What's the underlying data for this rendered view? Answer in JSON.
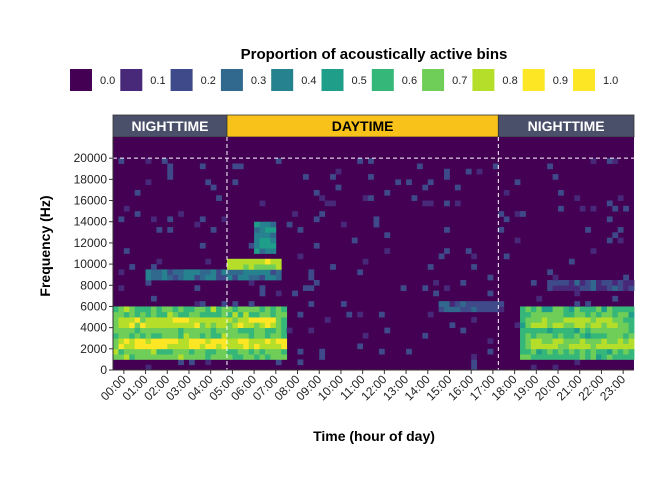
{
  "chart_data": {
    "type": "heatmap",
    "legend": {
      "title": "Proportion of acoustically active bins",
      "placement": "top",
      "breaks": [
        "0.0",
        "0.1",
        "0.2",
        "0.3",
        "0.4",
        "0.5",
        "0.6",
        "0.7",
        "0.8",
        "0.9",
        "1.0"
      ],
      "colors": [
        "#440154",
        "#482878",
        "#3E4A89",
        "#31688E",
        "#26828E",
        "#1F9E89",
        "#35B779",
        "#6ECE58",
        "#B5DE2B",
        "#FDE725",
        "#FDE725"
      ]
    },
    "periods": [
      {
        "label": "NIGHTTIME",
        "start_hour": 0,
        "end_hour": 5.25,
        "color": "#4A4F6A",
        "text_color": "#ffffff"
      },
      {
        "label": "DAYTIME",
        "start_hour": 5.25,
        "end_hour": 17.75,
        "color": "#F9C21A",
        "text_color": "#000000"
      },
      {
        "label": "NIGHTTIME",
        "start_hour": 17.75,
        "end_hour": 24,
        "color": "#4A4F6A",
        "text_color": "#ffffff"
      }
    ],
    "x_ticks": [
      "00:00",
      "01:00",
      "02:00",
      "03:00",
      "04:00",
      "05:00",
      "06:00",
      "07:00",
      "08:00",
      "09:00",
      "10:00",
      "11:00",
      "12:00",
      "13:00",
      "14:00",
      "15:00",
      "16:00",
      "17:00",
      "18:00",
      "19:00",
      "20:00",
      "21:00",
      "22:00",
      "23:00"
    ],
    "y_ticks": [
      "0",
      "2000",
      "4000",
      "6000",
      "8000",
      "10000",
      "12000",
      "14000",
      "16000",
      "18000",
      "20000"
    ],
    "xlabel": "Time (hour of day)",
    "ylabel": "Frequency (Hz)",
    "xlim": [
      0,
      24
    ],
    "ylim": [
      0,
      22000
    ],
    "reference_lines": {
      "vertical_hours": [
        5.25,
        17.75
      ],
      "horizontal_hz": [
        20000
      ],
      "style": "dashed-white"
    },
    "background_value": 0.0,
    "activity_regions": [
      {
        "hours": [
          0,
          8.0
        ],
        "hz": [
          1000,
          6000
        ],
        "value": 0.75,
        "note": "main low band, nighttime into early morning"
      },
      {
        "hours": [
          0.2,
          8.0
        ],
        "hz": [
          2000,
          3000
        ],
        "value": 0.95
      },
      {
        "hours": [
          0.2,
          7.5
        ],
        "hz": [
          4000,
          5000
        ],
        "value": 0.9
      },
      {
        "hours": [
          1.5,
          7.8
        ],
        "hz": [
          8500,
          9500
        ],
        "value": 0.35
      },
      {
        "hours": [
          5.3,
          7.8
        ],
        "hz": [
          9500,
          10500
        ],
        "value": 0.85
      },
      {
        "hours": [
          6.5,
          7.5
        ],
        "hz": [
          11000,
          14000
        ],
        "value": 0.45
      },
      {
        "hours": [
          15.0,
          18.0
        ],
        "hz": [
          5500,
          6500
        ],
        "value": 0.25
      },
      {
        "hours": [
          18.8,
          24
        ],
        "hz": [
          1000,
          6000
        ],
        "value": 0.7
      },
      {
        "hours": [
          19.0,
          24
        ],
        "hz": [
          2000,
          3000
        ],
        "value": 0.85
      },
      {
        "hours": [
          19.2,
          23.5
        ],
        "hz": [
          4000,
          5000
        ],
        "value": 0.85
      },
      {
        "hours": [
          20.0,
          24
        ],
        "hz": [
          7500,
          8500
        ],
        "value": 0.2
      }
    ]
  }
}
